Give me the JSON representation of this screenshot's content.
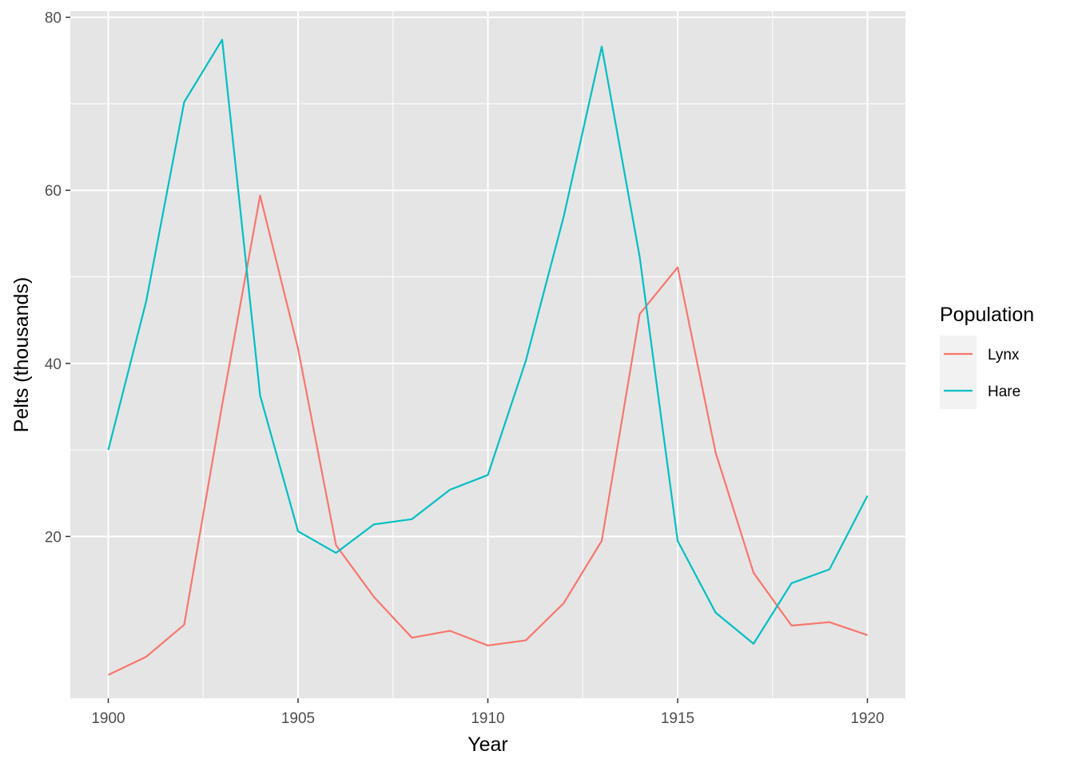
{
  "chart_data": {
    "type": "line",
    "xlabel": "Year",
    "ylabel": "Pelts (thousands)",
    "xlim": [
      1899,
      1921
    ],
    "ylim": [
      1.3,
      80.7
    ],
    "x_ticks": [
      1900,
      1905,
      1910,
      1915,
      1920
    ],
    "y_ticks": [
      20,
      40,
      60,
      80
    ],
    "grid": true,
    "background": "#e5e5e5",
    "legend": {
      "title": "Population",
      "placement": "right"
    },
    "x": [
      1900,
      1901,
      1902,
      1903,
      1904,
      1905,
      1906,
      1907,
      1908,
      1909,
      1910,
      1911,
      1912,
      1913,
      1914,
      1915,
      1916,
      1917,
      1918,
      1919,
      1920
    ],
    "series": [
      {
        "name": "Lynx",
        "color": "#f8766d",
        "values": [
          4.0,
          6.1,
          9.8,
          35.2,
          59.4,
          41.7,
          19.0,
          13.0,
          8.3,
          9.1,
          7.4,
          8.0,
          12.3,
          19.5,
          45.7,
          51.1,
          29.7,
          15.8,
          9.7,
          10.1,
          8.6
        ]
      },
      {
        "name": "Hare",
        "color": "#00bfc4",
        "values": [
          30.0,
          47.2,
          70.2,
          77.4,
          36.3,
          20.6,
          18.1,
          21.4,
          22.0,
          25.4,
          27.1,
          40.3,
          57.0,
          76.6,
          52.3,
          19.5,
          11.2,
          7.6,
          14.6,
          16.2,
          24.7
        ]
      }
    ]
  }
}
